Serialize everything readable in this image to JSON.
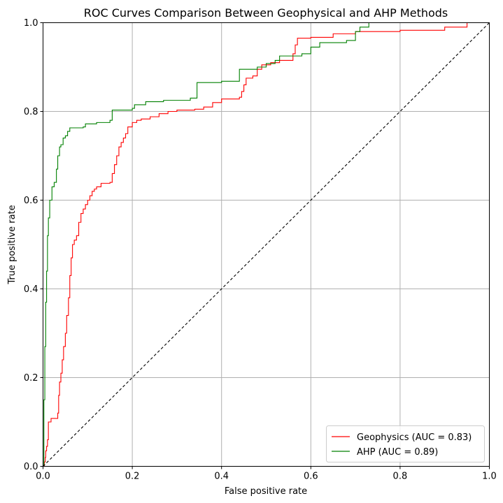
{
  "chart_data": {
    "type": "line",
    "title": "ROC Curves Comparison Between Geophysical and AHP Methods",
    "xlabel": "False positive rate",
    "ylabel": "True positive rate",
    "xlim": [
      0,
      1
    ],
    "ylim": [
      0,
      1
    ],
    "xticks": [
      "0.0",
      "0.2",
      "0.4",
      "0.6",
      "0.8",
      "1.0"
    ],
    "yticks": [
      "0.0",
      "0.2",
      "0.4",
      "0.6",
      "0.8",
      "1.0"
    ],
    "grid": true,
    "legend_position": "lower right",
    "series": [
      {
        "name": "Geophysics (AUC = 0.83)",
        "color": "#ff0000",
        "points": [
          [
            0.0,
            0.0
          ],
          [
            0.003,
            0.01
          ],
          [
            0.005,
            0.02
          ],
          [
            0.006,
            0.035
          ],
          [
            0.008,
            0.045
          ],
          [
            0.01,
            0.06
          ],
          [
            0.012,
            0.1
          ],
          [
            0.018,
            0.108
          ],
          [
            0.03,
            0.108
          ],
          [
            0.033,
            0.12
          ],
          [
            0.035,
            0.16
          ],
          [
            0.037,
            0.19
          ],
          [
            0.04,
            0.21
          ],
          [
            0.043,
            0.24
          ],
          [
            0.046,
            0.27
          ],
          [
            0.05,
            0.3
          ],
          [
            0.053,
            0.34
          ],
          [
            0.057,
            0.38
          ],
          [
            0.06,
            0.43
          ],
          [
            0.063,
            0.47
          ],
          [
            0.066,
            0.5
          ],
          [
            0.07,
            0.51
          ],
          [
            0.075,
            0.52
          ],
          [
            0.08,
            0.55
          ],
          [
            0.085,
            0.57
          ],
          [
            0.09,
            0.58
          ],
          [
            0.095,
            0.59
          ],
          [
            0.1,
            0.6
          ],
          [
            0.105,
            0.61
          ],
          [
            0.11,
            0.62
          ],
          [
            0.115,
            0.625
          ],
          [
            0.12,
            0.63
          ],
          [
            0.13,
            0.638
          ],
          [
            0.15,
            0.64
          ],
          [
            0.155,
            0.66
          ],
          [
            0.16,
            0.68
          ],
          [
            0.165,
            0.7
          ],
          [
            0.17,
            0.72
          ],
          [
            0.175,
            0.73
          ],
          [
            0.18,
            0.74
          ],
          [
            0.185,
            0.75
          ],
          [
            0.19,
            0.765
          ],
          [
            0.2,
            0.775
          ],
          [
            0.21,
            0.78
          ],
          [
            0.22,
            0.783
          ],
          [
            0.24,
            0.788
          ],
          [
            0.26,
            0.795
          ],
          [
            0.28,
            0.8
          ],
          [
            0.3,
            0.803
          ],
          [
            0.34,
            0.805
          ],
          [
            0.36,
            0.81
          ],
          [
            0.38,
            0.82
          ],
          [
            0.4,
            0.828
          ],
          [
            0.44,
            0.832
          ],
          [
            0.445,
            0.845
          ],
          [
            0.45,
            0.86
          ],
          [
            0.455,
            0.875
          ],
          [
            0.47,
            0.88
          ],
          [
            0.48,
            0.895
          ],
          [
            0.49,
            0.905
          ],
          [
            0.51,
            0.91
          ],
          [
            0.53,
            0.915
          ],
          [
            0.56,
            0.93
          ],
          [
            0.565,
            0.95
          ],
          [
            0.57,
            0.965
          ],
          [
            0.6,
            0.967
          ],
          [
            0.65,
            0.975
          ],
          [
            0.7,
            0.98
          ],
          [
            0.8,
            0.983
          ],
          [
            0.9,
            0.99
          ],
          [
            0.94,
            0.99
          ],
          [
            0.95,
            1.0
          ],
          [
            1.0,
            1.0
          ]
        ]
      },
      {
        "name": "AHP (AUC = 0.89)",
        "color": "#008000",
        "points": [
          [
            0.0,
            0.0
          ],
          [
            0.002,
            0.15
          ],
          [
            0.004,
            0.27
          ],
          [
            0.006,
            0.37
          ],
          [
            0.008,
            0.44
          ],
          [
            0.01,
            0.52
          ],
          [
            0.012,
            0.56
          ],
          [
            0.015,
            0.6
          ],
          [
            0.02,
            0.63
          ],
          [
            0.025,
            0.64
          ],
          [
            0.03,
            0.67
          ],
          [
            0.033,
            0.7
          ],
          [
            0.037,
            0.72
          ],
          [
            0.04,
            0.725
          ],
          [
            0.045,
            0.74
          ],
          [
            0.05,
            0.745
          ],
          [
            0.055,
            0.755
          ],
          [
            0.06,
            0.763
          ],
          [
            0.09,
            0.765
          ],
          [
            0.095,
            0.772
          ],
          [
            0.12,
            0.775
          ],
          [
            0.15,
            0.78
          ],
          [
            0.155,
            0.803
          ],
          [
            0.2,
            0.807
          ],
          [
            0.205,
            0.815
          ],
          [
            0.23,
            0.822
          ],
          [
            0.27,
            0.825
          ],
          [
            0.33,
            0.83
          ],
          [
            0.345,
            0.865
          ],
          [
            0.4,
            0.868
          ],
          [
            0.44,
            0.88
          ],
          [
            0.44,
            0.895
          ],
          [
            0.48,
            0.9
          ],
          [
            0.5,
            0.908
          ],
          [
            0.52,
            0.915
          ],
          [
            0.53,
            0.925
          ],
          [
            0.58,
            0.93
          ],
          [
            0.6,
            0.945
          ],
          [
            0.62,
            0.955
          ],
          [
            0.68,
            0.96
          ],
          [
            0.7,
            0.98
          ],
          [
            0.71,
            0.99
          ],
          [
            0.73,
            1.0
          ],
          [
            1.0,
            1.0
          ]
        ]
      },
      {
        "name": "",
        "color": "#000000",
        "dashed": true,
        "points": [
          [
            0.0,
            0.0
          ],
          [
            1.0,
            1.0
          ]
        ]
      }
    ]
  }
}
